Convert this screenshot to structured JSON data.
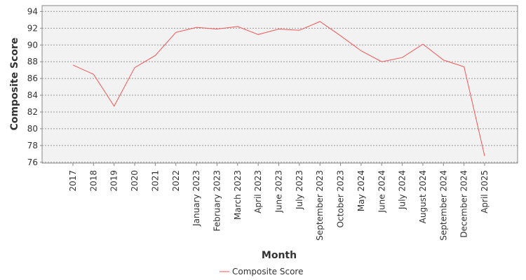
{
  "chart_data": {
    "type": "line",
    "y_label": "Composite Score",
    "x_label": "Month",
    "categories": [
      "2017",
      "2018",
      "2019",
      "2020",
      "2021",
      "2022",
      "January 2023",
      "February 2023",
      "March 2023",
      "April 2023",
      "June 2023",
      "July 2023",
      "September 2023",
      "October 2023",
      "May 2024",
      "June 2024",
      "July 2024",
      "August 2024",
      "September 2024",
      "December 2024",
      "April 2025"
    ],
    "series": [
      {
        "name": "Composite Score",
        "color": "#f25555",
        "values": [
          87.6,
          86.5,
          82.7,
          87.3,
          88.75,
          91.5,
          92.1,
          91.9,
          92.2,
          91.25,
          91.9,
          91.75,
          92.8,
          91.1,
          89.3,
          88.0,
          88.5,
          90.1,
          88.2,
          87.4,
          76.75
        ]
      }
    ],
    "ylim": [
      75.9,
      94.7
    ],
    "yticks": [
      76,
      78,
      80,
      82,
      84,
      86,
      88,
      90,
      92,
      94
    ],
    "grid": true
  }
}
